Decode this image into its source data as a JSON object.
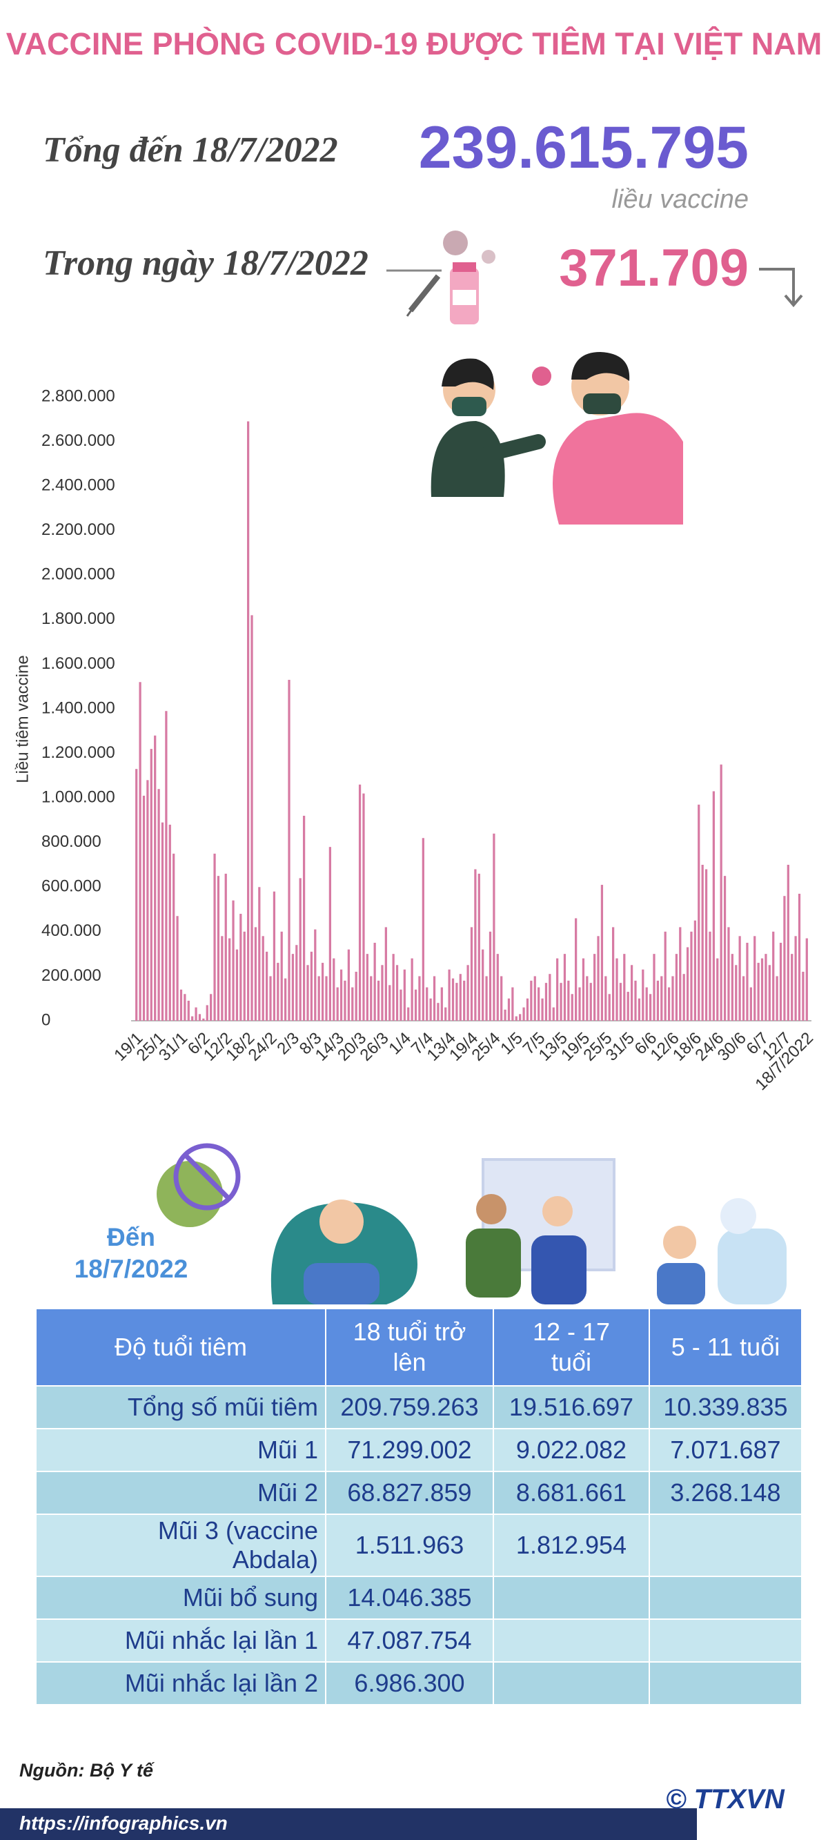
{
  "header": {
    "title": "VACCINE PHÒNG COVID-19 ĐƯỢC TIÊM TẠI VIỆT NAM",
    "total_label": "Tổng đến 18/7/2022",
    "total_value": "239.615.795",
    "total_unit": "liều vaccine",
    "day_label": "Trong ngày 18/7/2022",
    "day_value": "371.709"
  },
  "chart_data": {
    "type": "bar",
    "y_label": "Liều tiêm vaccine",
    "color": "#d77aa3",
    "categories": [
      "19/1",
      null,
      null,
      null,
      null,
      null,
      "25/1",
      null,
      null,
      null,
      null,
      null,
      "31/1",
      null,
      null,
      null,
      null,
      null,
      "6/2",
      null,
      null,
      null,
      null,
      null,
      "12/2",
      null,
      null,
      null,
      null,
      null,
      "18/2",
      null,
      null,
      null,
      null,
      null,
      "24/2",
      null,
      null,
      null,
      null,
      null,
      "2/3",
      null,
      null,
      null,
      null,
      null,
      "8/3",
      null,
      null,
      null,
      null,
      null,
      "14/3",
      null,
      null,
      null,
      null,
      null,
      "20/3",
      null,
      null,
      null,
      null,
      null,
      "26/3",
      null,
      null,
      null,
      null,
      null,
      "1/4",
      null,
      null,
      null,
      null,
      null,
      "7/4",
      null,
      null,
      null,
      null,
      null,
      "13/4",
      null,
      null,
      null,
      null,
      null,
      "19/4",
      null,
      null,
      null,
      null,
      null,
      "25/4",
      null,
      null,
      null,
      null,
      null,
      "1/5",
      null,
      null,
      null,
      null,
      null,
      "7/5",
      null,
      null,
      null,
      null,
      null,
      "13/5",
      null,
      null,
      null,
      null,
      null,
      "19/5",
      null,
      null,
      null,
      null,
      null,
      "25/5",
      null,
      null,
      null,
      null,
      null,
      "31/5",
      null,
      null,
      null,
      null,
      null,
      "6/6",
      null,
      null,
      null,
      null,
      null,
      "12/6",
      null,
      null,
      null,
      null,
      null,
      "18/6",
      null,
      null,
      null,
      null,
      null,
      "24/6",
      null,
      null,
      null,
      null,
      null,
      "30/6",
      null,
      null,
      null,
      null,
      null,
      "6/7",
      null,
      null,
      null,
      null,
      null,
      "12/7",
      null,
      null,
      null,
      null,
      null,
      "18/7/2022"
    ],
    "values": [
      1130000,
      1520000,
      1010000,
      1080000,
      1220000,
      1280000,
      1040000,
      890000,
      1390000,
      880000,
      750000,
      470000,
      140000,
      120000,
      90000,
      20000,
      60000,
      30000,
      10000,
      70000,
      120000,
      750000,
      650000,
      380000,
      660000,
      370000,
      540000,
      320000,
      480000,
      400000,
      2690000,
      1820000,
      420000,
      600000,
      380000,
      310000,
      200000,
      580000,
      260000,
      400000,
      190000,
      1530000,
      300000,
      340000,
      640000,
      920000,
      250000,
      310000,
      410000,
      200000,
      260000,
      200000,
      780000,
      280000,
      150000,
      230000,
      180000,
      320000,
      150000,
      220000,
      1060000,
      1020000,
      300000,
      200000,
      350000,
      180000,
      250000,
      420000,
      160000,
      300000,
      250000,
      140000,
      230000,
      60000,
      280000,
      140000,
      200000,
      820000,
      150000,
      100000,
      200000,
      80000,
      150000,
      60000,
      230000,
      190000,
      170000,
      210000,
      180000,
      250000,
      420000,
      680000,
      660000,
      320000,
      200000,
      400000,
      840000,
      300000,
      200000,
      50000,
      100000,
      150000,
      20000,
      30000,
      60000,
      100000,
      180000,
      200000,
      150000,
      100000,
      170000,
      210000,
      60000,
      280000,
      170000,
      300000,
      180000,
      120000,
      460000,
      150000,
      280000,
      200000,
      170000,
      300000,
      380000,
      610000,
      200000,
      120000,
      420000,
      280000,
      170000,
      300000,
      130000,
      250000,
      180000,
      100000,
      230000,
      150000,
      120000,
      300000,
      180000,
      200000,
      400000,
      150000,
      200000,
      300000,
      420000,
      210000,
      330000,
      400000,
      450000,
      970000,
      700000,
      680000,
      400000,
      1030000,
      280000,
      1150000,
      650000,
      420000,
      300000,
      250000,
      380000,
      200000,
      350000,
      150000,
      380000,
      260000,
      280000,
      300000,
      250000,
      400000,
      200000,
      350000,
      560000,
      700000,
      300000,
      380000,
      570000,
      220000,
      370000
    ],
    "ylim": [
      0,
      2800000
    ],
    "yticks": [
      0,
      {
        "value": 200000,
        "label": "200.000"
      },
      {
        "value": 400000,
        "label": "400.000"
      },
      {
        "value": 600000,
        "label": "600.000"
      },
      {
        "value": 800000,
        "label": "800.000"
      },
      {
        "value": 1000000,
        "label": "1.000.000"
      },
      {
        "value": 1200000,
        "label": "1.200.000"
      },
      {
        "value": 1400000,
        "label": "1.400.000"
      },
      {
        "value": 1600000,
        "label": "1.600.000"
      },
      {
        "value": 1800000,
        "label": "1.800.000"
      },
      {
        "value": 2000000,
        "label": "2.000.000"
      },
      {
        "value": 2200000,
        "label": "2.200.000"
      },
      {
        "value": 2400000,
        "label": "2.400.000"
      },
      {
        "value": 2600000,
        "label": "2.600.000"
      },
      {
        "value": 2800000,
        "label": "2.800.000"
      }
    ],
    "grid": false
  },
  "table": {
    "caption": "Đến 18/7/2022",
    "header": [
      "Độ tuổi tiêm",
      "18 tuổi trở lên",
      "12 - 17 tuổi",
      "5 - 11 tuổi"
    ],
    "rows": [
      [
        "Tổng số mũi tiêm",
        "209.759.263",
        "19.516.697",
        "10.339.835"
      ],
      [
        "Mũi 1",
        "71.299.002",
        "9.022.082",
        "7.071.687"
      ],
      [
        "Mũi 2",
        "68.827.859",
        "8.681.661",
        "3.268.148"
      ],
      [
        "Mũi 3 (vaccine Abdala)",
        "1.511.963",
        "1.812.954"
      ],
      [
        "Mũi bổ sung",
        "14.046.385"
      ],
      [
        "Mũi nhắc lại lần 1",
        "47.087.754"
      ],
      [
        "Mũi nhắc lại lần 2",
        "6.986.300"
      ]
    ]
  },
  "footer": {
    "source": "Nguồn: Bộ Y tế",
    "url": "https://infographics.vn",
    "logo": "© TTXVN"
  }
}
